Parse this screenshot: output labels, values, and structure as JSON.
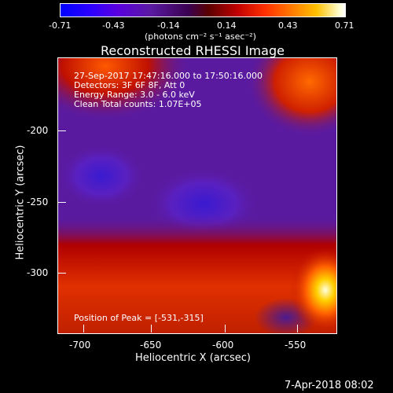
{
  "colorbar": {
    "ticks": [
      "-0.71",
      "-0.43",
      "-0.14",
      "0.14",
      "0.43",
      "0.71"
    ],
    "unit": "(photons cm⁻² s⁻¹ asec⁻²)"
  },
  "title": "Reconstructed RHESSI Image",
  "info": {
    "time": "27-Sep-2017 17:47:16.000 to 17:50:16.000",
    "detectors": "Detectors: 3F 6F 8F, Att 0",
    "energy": "Energy Range: 3.0 - 6.0 keV",
    "clean": "Clean     Total counts: 1.07E+05",
    "peak": "Position of Peak = [-531,-315]"
  },
  "axes": {
    "xlabel": "Heliocentric X (arcsec)",
    "ylabel": "Heliocentric Y (arcsec)",
    "xticks": [
      "-700",
      "-650",
      "-600",
      "-550"
    ],
    "yticks": [
      "-200",
      "-250",
      "-300"
    ]
  },
  "timestamp": "7-Apr-2018 08:02",
  "colors": {
    "background": "#000000",
    "low": "#0000ff",
    "mid": "#5a1aa0",
    "high": "#ff3000",
    "peak": "#ffffd0"
  }
}
